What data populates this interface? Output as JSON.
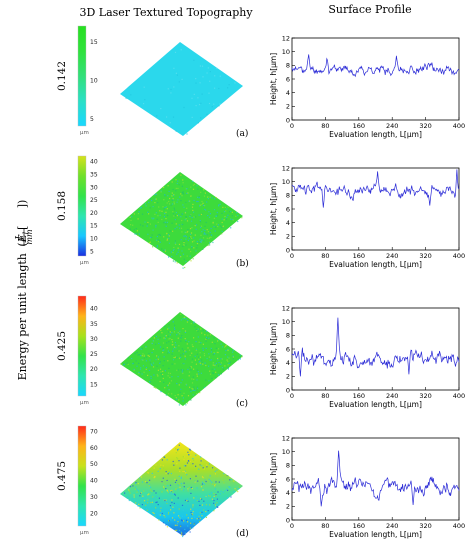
{
  "headers": {
    "topo": "3D Laser Textured Topography",
    "profile": "Surface Profile"
  },
  "energy_label": {
    "prefix": "Energy per unit length",
    "symbol": "E",
    "subscript": "l",
    "num": "J",
    "den": "mm"
  },
  "colorbar_unit": "µm",
  "colors": {
    "trace": "#2a2ad6",
    "frame": "#000000"
  },
  "chart_data": [
    {
      "type": "line",
      "panel_label": "(a)",
      "energy": "0.142",
      "colorbar": {
        "ticks": [
          5,
          10,
          15
        ],
        "range": [
          4,
          17
        ],
        "stops": [
          "#19d7ff",
          "#2be0c6",
          "#32e07a",
          "#2fe23c",
          "#27e020"
        ]
      },
      "surface_palette": "cyan",
      "xlabel": "Evaluation length, L[µm]",
      "ylabel": "Height, h[µm]",
      "xlim": [
        0,
        400
      ],
      "ylim": [
        0,
        12
      ],
      "xticks": [
        0,
        80,
        160,
        240,
        320,
        400
      ],
      "yticks": [
        0,
        2,
        4,
        6,
        8,
        10,
        12
      ],
      "series": [
        {
          "mean": 7.4,
          "amp": 0.9,
          "seed": 11,
          "peaks": [
            [
              40,
              9.6
            ],
            [
              84,
              9.3
            ],
            [
              250,
              9.4
            ]
          ]
        }
      ]
    },
    {
      "type": "line",
      "panel_label": "(b)",
      "energy": "0.158",
      "colorbar": {
        "ticks": [
          5,
          10,
          15,
          20,
          25,
          30,
          35,
          40
        ],
        "range": [
          3,
          42
        ],
        "stops": [
          "#1a2fe0",
          "#19c7ff",
          "#2ee6b0",
          "#31e34a",
          "#6fe02a",
          "#d6e21c"
        ]
      },
      "surface_palette": "green",
      "xlabel": "Evaluation length, L[µm]",
      "ylabel": "Height, h[µm]",
      "xlim": [
        0,
        400
      ],
      "ylim": [
        0,
        12
      ],
      "xticks": [
        0,
        80,
        160,
        240,
        320,
        400
      ],
      "yticks": [
        0,
        2,
        4,
        6,
        8,
        10,
        12
      ],
      "series": [
        {
          "mean": 8.8,
          "amp": 1.2,
          "seed": 23,
          "peaks": [
            [
              75,
              6.2
            ],
            [
              205,
              11.5
            ],
            [
              395,
              11.8
            ],
            [
              330,
              6.5
            ]
          ]
        }
      ]
    },
    {
      "type": "line",
      "panel_label": "(c)",
      "energy": "0.425",
      "colorbar": {
        "ticks": [
          15,
          20,
          25,
          30,
          35,
          40
        ],
        "range": [
          11,
          44
        ],
        "stops": [
          "#19d7ff",
          "#2ee6b0",
          "#31e34a",
          "#a8e21c",
          "#ffb41a",
          "#ff2a1a"
        ]
      },
      "surface_palette": "green",
      "xlabel": "Evaluation length, L[µm]",
      "ylabel": "Height, h[µm]",
      "xlim": [
        0,
        400
      ],
      "ylim": [
        0,
        12
      ],
      "xticks": [
        0,
        80,
        160,
        240,
        320,
        400
      ],
      "yticks": [
        0,
        2,
        4,
        6,
        8,
        10,
        12
      ],
      "series": [
        {
          "mean": 4.6,
          "amp": 1.5,
          "seed": 37,
          "peaks": [
            [
              110,
              10.6
            ],
            [
              20,
              2.0
            ],
            [
              280,
              2.3
            ]
          ]
        }
      ]
    },
    {
      "type": "line",
      "panel_label": "(d)",
      "energy": "0.475",
      "colorbar": {
        "ticks": [
          20,
          30,
          40,
          50,
          60,
          70
        ],
        "range": [
          12,
          73
        ],
        "stops": [
          "#19d7ff",
          "#2ee6b0",
          "#31e34a",
          "#c8e21c",
          "#ffb41a",
          "#ff2a1a"
        ]
      },
      "surface_palette": "gradient",
      "xlabel": "Evaluation length, L[µm]",
      "ylabel": "Height, h[µm]",
      "xlim": [
        0,
        400
      ],
      "ylim": [
        0,
        12
      ],
      "xticks": [
        0,
        80,
        160,
        240,
        320,
        400
      ],
      "yticks": [
        0,
        2,
        4,
        6,
        8,
        10,
        12
      ],
      "series": [
        {
          "mean": 4.8,
          "amp": 1.5,
          "seed": 51,
          "peaks": [
            [
              112,
              10.5
            ],
            [
              70,
              2.0
            ],
            [
              290,
              2.2
            ]
          ]
        }
      ]
    }
  ]
}
